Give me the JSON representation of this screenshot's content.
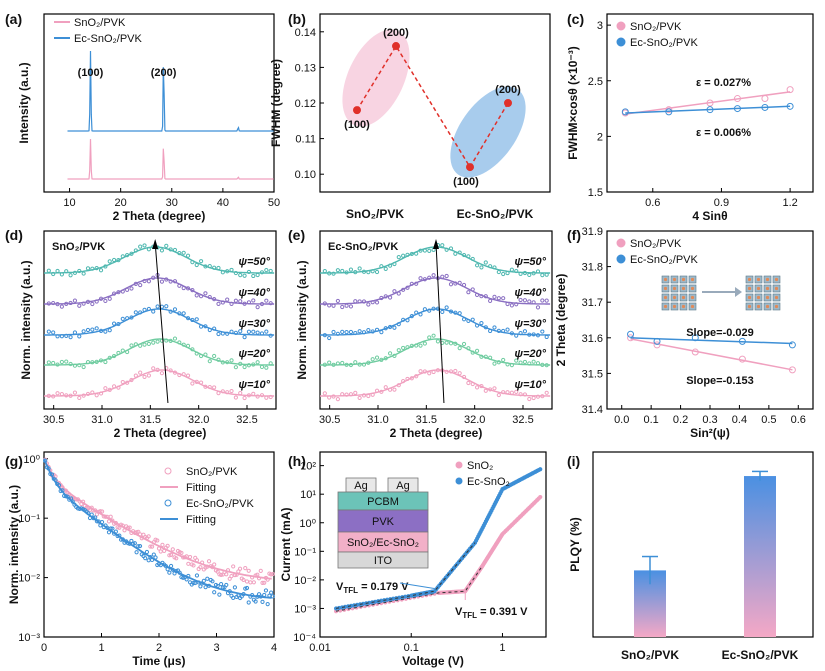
{
  "colors": {
    "pink": "#f0a0bf",
    "blue": "#3d8fd6",
    "red": "#e0302a",
    "purple": "#8a6fc2",
    "teal": "#4fb8b0",
    "green": "#6fcca0",
    "black": "#000000"
  },
  "panels": {
    "a": "(a)",
    "b": "(b)",
    "c": "(c)",
    "d": "(d)",
    "e": "(e)",
    "f": "(f)",
    "g": "(g)",
    "h": "(h)",
    "i": "(i)"
  },
  "chart_data": [
    {
      "id": "a",
      "type": "line",
      "xlabel": "2 Theta (degree)",
      "ylabel": "Intensity (a.u.)",
      "xlim": [
        5,
        50
      ],
      "xticks": [
        "10",
        "20",
        "30",
        "40",
        "50"
      ],
      "series": [
        {
          "name": "SnO₂/PVK",
          "peaks": [
            [
              14.1,
              1.0
            ],
            [
              28.4,
              0.9
            ],
            [
              43.0,
              0.05
            ]
          ]
        },
        {
          "name": "Ec-SnO₂/PVK",
          "peaks": [
            [
              14.1,
              1.0
            ],
            [
              28.4,
              0.95
            ],
            [
              43.0,
              0.05
            ]
          ]
        }
      ],
      "annotations": [
        "(100)",
        "(200)"
      ]
    },
    {
      "id": "b",
      "type": "scatter",
      "ylabel": "FWHM (degree)",
      "ylim": [
        0.095,
        0.145
      ],
      "yticks": [
        "0.10",
        "0.11",
        "0.12",
        "0.13",
        "0.14"
      ],
      "categories": [
        "SnO₂/PVK",
        "Ec-SnO₂/PVK"
      ],
      "points": [
        {
          "group": "SnO₂/PVK",
          "label": "(100)",
          "value": 0.118
        },
        {
          "group": "SnO₂/PVK",
          "label": "(200)",
          "value": 0.136
        },
        {
          "group": "Ec-SnO₂/PVK",
          "label": "(100)",
          "value": 0.102
        },
        {
          "group": "Ec-SnO₂/PVK",
          "label": "(200)",
          "value": 0.12
        }
      ]
    },
    {
      "id": "c",
      "type": "scatter",
      "xlabel": "4 Sinθ",
      "ylabel": "FWHM×cosθ (×10⁻³)",
      "xlim": [
        0.4,
        1.3
      ],
      "ylim": [
        1.5,
        3.1
      ],
      "xticks": [
        "0.6",
        "0.9",
        "1.2"
      ],
      "yticks": [
        "1.5",
        "2",
        "2.5",
        "3"
      ],
      "series": [
        {
          "name": "SnO₂/PVK",
          "x": [
            0.48,
            0.67,
            0.85,
            0.97,
            1.09,
            1.2
          ],
          "y": [
            2.21,
            2.24,
            2.3,
            2.34,
            2.34,
            2.42
          ],
          "fit": [
            [
              0.48,
              2.2
            ],
            [
              1.2,
              2.4
            ]
          ],
          "annotation": "ε = 0.027%"
        },
        {
          "name": "Ec-SnO₂/PVK",
          "x": [
            0.48,
            0.67,
            0.85,
            0.97,
            1.09,
            1.2
          ],
          "y": [
            2.22,
            2.22,
            2.24,
            2.25,
            2.26,
            2.27
          ],
          "fit": [
            [
              0.48,
              2.21
            ],
            [
              1.2,
              2.27
            ]
          ],
          "annotation": "ε = 0.006%"
        }
      ]
    },
    {
      "id": "d",
      "type": "line",
      "title": "SnO₂/PVK",
      "xlabel": "2 Theta (degree)",
      "ylabel": "Norm. intensity (a.u.)",
      "xlim": [
        30.4,
        32.8
      ],
      "xticks": [
        "30.5",
        "31.0",
        "31.5",
        "32.0",
        "32.5"
      ],
      "series": [
        {
          "name": "ψ=10°",
          "center": 31.62
        },
        {
          "name": "ψ=20°",
          "center": 31.6
        },
        {
          "name": "ψ=30°",
          "center": 31.59
        },
        {
          "name": "ψ=40°",
          "center": 31.57
        },
        {
          "name": "ψ=50°",
          "center": 31.55
        }
      ]
    },
    {
      "id": "e",
      "type": "line",
      "title": "Ec-SnO₂/PVK",
      "xlabel": "2 Theta (degree)",
      "ylabel": "Norm. intensity (a.u.)",
      "xlim": [
        30.4,
        32.8
      ],
      "xticks": [
        "30.5",
        "31.0",
        "31.5",
        "32.0",
        "32.5"
      ],
      "series": [
        {
          "name": "ψ=10°",
          "center": 31.62
        },
        {
          "name": "ψ=20°",
          "center": 31.61
        },
        {
          "name": "ψ=30°",
          "center": 31.61
        },
        {
          "name": "ψ=40°",
          "center": 31.6
        },
        {
          "name": "ψ=50°",
          "center": 31.6
        }
      ]
    },
    {
      "id": "f",
      "type": "scatter",
      "xlabel": "Sin²(ψ)",
      "ylabel": "2 Theta (degree)",
      "xlim": [
        -0.05,
        0.65
      ],
      "ylim": [
        31.4,
        31.9
      ],
      "xticks": [
        "0.0",
        "0.1",
        "0.2",
        "0.3",
        "0.4",
        "0.5",
        "0.6"
      ],
      "yticks": [
        "31.4",
        "31.5",
        "31.6",
        "31.7",
        "31.8",
        "31.9"
      ],
      "series": [
        {
          "name": "SnO₂/PVK",
          "x": [
            0.03,
            0.12,
            0.25,
            0.41,
            0.58
          ],
          "y": [
            31.6,
            31.58,
            31.56,
            31.54,
            31.51
          ],
          "fit": [
            [
              0.03,
              31.597
            ],
            [
              0.58,
              31.51
            ]
          ],
          "annotation": "Slope=-0.153"
        },
        {
          "name": "Ec-SnO₂/PVK",
          "x": [
            0.03,
            0.12,
            0.25,
            0.41,
            0.58
          ],
          "y": [
            31.61,
            31.59,
            31.6,
            31.59,
            31.58
          ],
          "fit": [
            [
              0.03,
              31.6
            ],
            [
              0.58,
              31.584
            ]
          ],
          "annotation": "Slope=-0.029"
        }
      ]
    },
    {
      "id": "g",
      "type": "scatter",
      "xlabel": "Time (μs)",
      "ylabel": "Norm. intensity (a.u.)",
      "xlim": [
        0,
        4
      ],
      "ylim": [
        0.001,
        1.3
      ],
      "yscale": "log",
      "xticks": [
        "0",
        "1",
        "2",
        "3",
        "4"
      ],
      "yticks": [
        "10⁻³",
        "10⁻²",
        "10⁻¹",
        "10⁰"
      ],
      "series": [
        {
          "name": "SnO₂/PVK",
          "model": {
            "a1": 0.55,
            "t1": 0.13,
            "a2": 0.45,
            "t2": 0.7,
            "floor": 0.008
          }
        },
        {
          "name": "Fitting"
        },
        {
          "name": "Ec-SnO₂/PVK",
          "model": {
            "a1": 0.6,
            "t1": 0.12,
            "a2": 0.4,
            "t2": 0.6,
            "floor": 0.004
          }
        },
        {
          "name": "Fitting"
        }
      ]
    },
    {
      "id": "h",
      "type": "line",
      "xlabel": "Voltage (V)",
      "ylabel": "Current (mA)",
      "xscale": "log",
      "yscale": "log",
      "xlim": [
        0.01,
        3
      ],
      "ylim": [
        0.0001,
        300
      ],
      "xticks": [
        "0.01",
        "0.1",
        "1"
      ],
      "yticks": [
        "10⁻⁴",
        "10⁻³",
        "10⁻²",
        "10⁻¹",
        "10⁰",
        "10¹",
        "10²"
      ],
      "series": [
        {
          "name": "SnO₂",
          "vtfl": "V_TFL = 0.391 V",
          "points": [
            [
              0.015,
              0.0008
            ],
            [
              0.2,
              0.0035
            ],
            [
              0.39,
              0.004
            ],
            [
              0.6,
              0.03
            ],
            [
              1.0,
              0.4
            ],
            [
              2.7,
              9.0
            ]
          ]
        },
        {
          "name": "Ec-SnO₂",
          "vtfl": "V_TFL = 0.179 V",
          "points": [
            [
              0.015,
              0.001
            ],
            [
              0.1,
              0.0028
            ],
            [
              0.18,
              0.004
            ],
            [
              0.5,
              0.2
            ],
            [
              1.0,
              15.0
            ],
            [
              2.7,
              80.0
            ]
          ]
        }
      ],
      "device_layers": [
        "Ag",
        "Ag",
        "PCBM",
        "PVK",
        "SnO₂/Ec-SnO₂",
        "ITO"
      ],
      "vtfl_sub": "TFL",
      "vtfl_text": {
        "blue": " = 0.179 V",
        "pink": " = 0.391 V"
      }
    },
    {
      "id": "i",
      "type": "bar",
      "ylabel": "PLQY (%)",
      "ylim": [
        0,
        1
      ],
      "categories": [
        "SnO₂/PVK",
        "Ec-SnO₂/PVK"
      ],
      "values": [
        0.36,
        0.87
      ],
      "errors": [
        0.075,
        0.025
      ]
    }
  ]
}
